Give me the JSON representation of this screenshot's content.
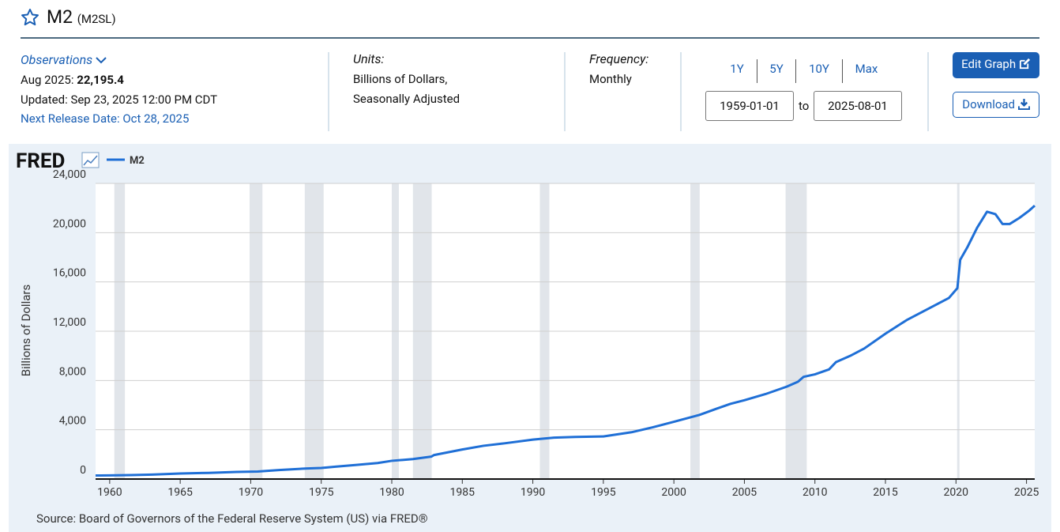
{
  "header": {
    "title": "M2",
    "series_id": "(M2SL)"
  },
  "meta": {
    "observations_label": "Observations",
    "latest_label": "Aug 2025:",
    "latest_value": "22,195.4",
    "updated": "Updated: Sep 23, 2025 12:00 PM CDT",
    "next_release": "Next Release Date: Oct 28, 2025",
    "units_label": "Units:",
    "units": [
      "Billions of Dollars,",
      "Seasonally Adjusted"
    ],
    "frequency_label": "Frequency:",
    "frequency": "Monthly"
  },
  "controls": {
    "ranges": [
      "1Y",
      "5Y",
      "10Y",
      "Max"
    ],
    "start_date": "1959-01-01",
    "to": "to",
    "end_date": "2025-08-01",
    "edit_button": "Edit Graph",
    "download_button": "Download"
  },
  "chart_data": {
    "type": "line",
    "logo": "FRED",
    "y_label": "Billions of Dollars",
    "xlim": [
      1959,
      2025.583
    ],
    "xticks": [
      1960,
      1965,
      1970,
      1975,
      1980,
      1985,
      1990,
      1995,
      2000,
      2005,
      2010,
      2015,
      2020,
      2025
    ],
    "ylim": [
      0,
      24000
    ],
    "yticks": [
      0,
      {
        "value": 4000,
        "label": "4,000"
      },
      {
        "value": 8000,
        "label": "8,000"
      },
      {
        "value": 12000,
        "label": "12,000"
      },
      {
        "value": 16000,
        "label": "16,000"
      },
      {
        "value": 20000,
        "label": "20,000"
      },
      {
        "value": 24000,
        "label": "24,000"
      }
    ],
    "grid": true,
    "recessions": [
      [
        1960.33,
        1961.08
      ],
      [
        1969.92,
        1970.83
      ],
      [
        1973.83,
        1975.17
      ],
      [
        1980.0,
        1980.5
      ],
      [
        1981.5,
        1982.83
      ],
      [
        1990.5,
        1991.17
      ],
      [
        2001.17,
        2001.83
      ],
      [
        2007.92,
        2009.42
      ],
      [
        2020.08,
        2020.25
      ]
    ],
    "x": [
      1959,
      1960,
      1961.5,
      1963,
      1965,
      1967,
      1969,
      1970.5,
      1972,
      1974,
      1975,
      1976,
      1977.5,
      1979,
      1980,
      1981.5,
      1982.8,
      1983,
      1985,
      1986.5,
      1988,
      1990,
      1991.5,
      1993,
      1995,
      1997,
      1998.5,
      2000,
      2001.8,
      2003,
      2004,
      2005,
      2006.5,
      2008,
      2008.8,
      2009.2,
      2010,
      2011,
      2011.5,
      2012.5,
      2013.5,
      2015,
      2016.5,
      2018,
      2019.5,
      2020.1,
      2020.3,
      2020.8,
      2021.5,
      2022.2,
      2022.8,
      2023.3,
      2023.8,
      2024.5,
      2025.2,
      2025.583
    ],
    "series": [
      {
        "name": "M2",
        "color": "#1f6fd6",
        "values": [
          286.6,
          298,
          320,
          360,
          450,
          500,
          580,
          610,
          730,
          860,
          900,
          1000,
          1150,
          1300,
          1480,
          1620,
          1820,
          1950,
          2400,
          2700,
          2900,
          3200,
          3360,
          3420,
          3460,
          3800,
          4200,
          4650,
          5200,
          5700,
          6100,
          6400,
          6900,
          7500,
          7900,
          8300,
          8500,
          8900,
          9500,
          10000,
          10600,
          11800,
          12900,
          13800,
          14700,
          15500,
          17800,
          18800,
          20400,
          21700,
          21500,
          20700,
          20700,
          21200,
          21800,
          22195.4
        ]
      }
    ],
    "source": "Source: Board of Governors of the Federal Reserve System (US) via FRED®"
  }
}
